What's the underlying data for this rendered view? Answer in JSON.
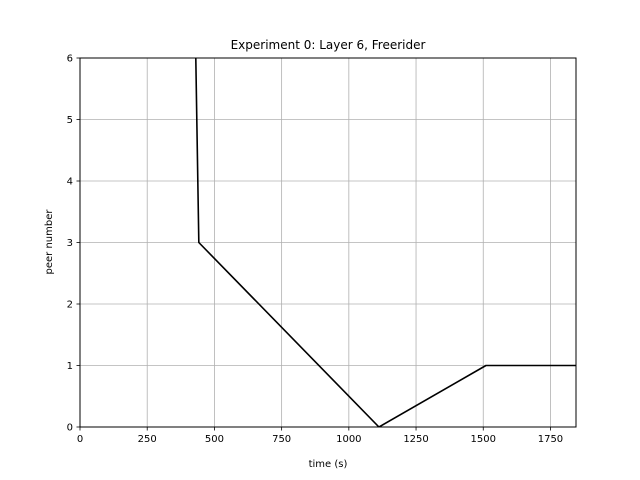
{
  "chart_data": {
    "type": "line",
    "title": "Experiment 0: Layer 6, Freerider",
    "xlabel": "time (s)",
    "ylabel": "peer number",
    "xlim": [
      0,
      1845
    ],
    "ylim": [
      0,
      6
    ],
    "xticks": [
      0,
      250,
      500,
      750,
      1000,
      1250,
      1500,
      1750
    ],
    "yticks": [
      0,
      1,
      2,
      3,
      4,
      5,
      6
    ],
    "grid": true,
    "series": [
      {
        "color": "#000000",
        "x": [
          430,
          442,
          1112,
          1510,
          1845
        ],
        "y": [
          6.2,
          3,
          0,
          1,
          1
        ]
      }
    ]
  }
}
